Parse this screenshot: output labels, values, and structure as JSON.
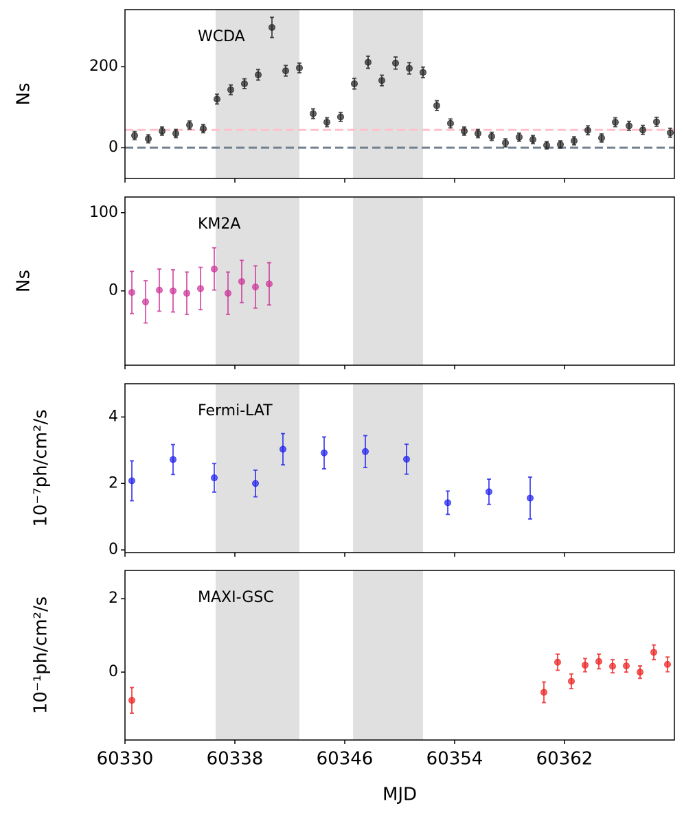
{
  "chart_data": [
    {
      "type": "scatter",
      "ylabel": "Ns",
      "annotation": "WCDA",
      "xlim": [
        60330,
        60370
      ],
      "xticks": [
        60330,
        60338,
        60346,
        60354,
        60362
      ],
      "ylim": [
        -76,
        341
      ],
      "yticks": [
        0,
        200
      ],
      "shaded_regions": [
        [
          60336.6,
          60342.7
        ],
        [
          60346.6,
          60351.7
        ]
      ],
      "hlines": [
        {
          "y": 0,
          "color": "#708090"
        },
        {
          "y": 44,
          "color": "#ffc0cb"
        }
      ],
      "series": [
        {
          "name": "WCDA",
          "color": "#222222",
          "x": [
            60330.7,
            60331.7,
            60332.7,
            60333.7,
            60334.7,
            60335.7,
            60336.7,
            60337.7,
            60338.7,
            60339.7,
            60340.7,
            60341.7,
            60342.7,
            60343.7,
            60344.7,
            60345.7,
            60346.7,
            60347.7,
            60348.7,
            60349.7,
            60350.7,
            60351.7,
            60352.7,
            60353.7,
            60354.7,
            60355.7,
            60356.7,
            60357.7,
            60358.7,
            60359.7,
            60360.7,
            60361.7,
            60362.7,
            60363.7,
            60364.7,
            60365.7,
            60366.7,
            60367.7,
            60368.7,
            60369.7
          ],
          "values": [
            30,
            22,
            41,
            35,
            56,
            47,
            120,
            143,
            158,
            180,
            297,
            190,
            197,
            84,
            63,
            76,
            158,
            211,
            166,
            209,
            196,
            186,
            104,
            60,
            41,
            35,
            28,
            12,
            26,
            20,
            6,
            8,
            17,
            43,
            24,
            63,
            54,
            44,
            64,
            37
          ],
          "errors": [
            10,
            10,
            10,
            10,
            10,
            10,
            12,
            12,
            12,
            13,
            25,
            13,
            12,
            12,
            11,
            11,
            13,
            15,
            13,
            15,
            14,
            13,
            12,
            11,
            10,
            10,
            10,
            10,
            10,
            10,
            9,
            9,
            10,
            11,
            10,
            11,
            11,
            11,
            11,
            11
          ]
        }
      ]
    },
    {
      "type": "scatter",
      "ylabel": "Ns",
      "annotation": "KM2A",
      "xlim": [
        60330,
        60370
      ],
      "xticks": [
        60330,
        60338,
        60346,
        60354,
        60362
      ],
      "ylim": [
        -95,
        120
      ],
      "yticks": [
        0,
        100
      ],
      "shaded_regions": [
        [
          60336.6,
          60342.7
        ],
        [
          60346.6,
          60351.7
        ]
      ],
      "series": [
        {
          "name": "KM2A",
          "color": "#cc3399",
          "x": [
            60330.5,
            60331.5,
            60332.5,
            60333.5,
            60334.5,
            60335.5,
            60336.5,
            60337.5,
            60338.5,
            60339.5,
            60340.5
          ],
          "values": [
            -2,
            -14,
            1,
            0,
            -3,
            3,
            28,
            -3,
            12,
            5,
            9
          ],
          "errors": [
            27,
            27,
            27,
            27,
            27,
            27,
            27,
            27,
            27,
            27,
            27
          ]
        }
      ]
    },
    {
      "type": "scatter",
      "ylabel": "10⁻⁷ph/cm²/s",
      "annotation": "Fermi-LAT",
      "xlim": [
        60330,
        60370
      ],
      "xticks": [
        60330,
        60338,
        60346,
        60354,
        60362
      ],
      "ylim": [
        -0.08,
        5.0
      ],
      "yticks": [
        0,
        2,
        4
      ],
      "shaded_regions": [
        [
          60336.6,
          60342.7
        ],
        [
          60346.6,
          60351.7
        ]
      ],
      "series": [
        {
          "name": "Fermi-LAT",
          "color": "#2020ee",
          "x": [
            60330.5,
            60333.5,
            60336.5,
            60339.5,
            60341.5,
            60344.5,
            60347.5,
            60350.5,
            60353.5,
            60356.5,
            60359.5
          ],
          "values": [
            2.08,
            2.72,
            2.17,
            2.0,
            3.03,
            2.92,
            2.96,
            2.73,
            1.42,
            1.75,
            1.56
          ],
          "errors": [
            0.6,
            0.45,
            0.43,
            0.4,
            0.47,
            0.48,
            0.48,
            0.45,
            0.35,
            0.38,
            0.63
          ]
        }
      ]
    },
    {
      "type": "scatter",
      "ylabel": "10⁻¹ph/cm²/s",
      "annotation": "MAXI-GSC",
      "xlabel": "MJD",
      "xlim": [
        60330,
        60370
      ],
      "xticks": [
        60330,
        60338,
        60346,
        60354,
        60362
      ],
      "ylim": [
        -1.85,
        2.77
      ],
      "yticks": [
        0,
        2
      ],
      "shaded_regions": [
        [
          60336.6,
          60342.7
        ],
        [
          60346.6,
          60351.7
        ]
      ],
      "series": [
        {
          "name": "MAXI-GSC",
          "color": "#ee2020",
          "x": [
            60330.5,
            60360.5,
            60361.5,
            60362.5,
            60363.5,
            60364.5,
            60365.5,
            60366.5,
            60367.5,
            60368.5,
            60369.5
          ],
          "values": [
            -0.77,
            -0.55,
            0.27,
            -0.25,
            0.19,
            0.29,
            0.16,
            0.17,
            0.0,
            0.54,
            0.21
          ],
          "errors": [
            0.35,
            0.28,
            0.22,
            0.2,
            0.18,
            0.2,
            0.18,
            0.17,
            0.17,
            0.2,
            0.2
          ]
        }
      ]
    }
  ]
}
